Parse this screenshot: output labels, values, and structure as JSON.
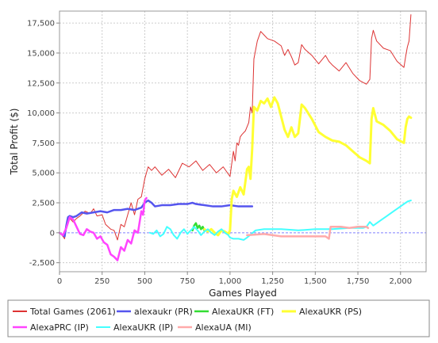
{
  "chart_data": {
    "type": "line",
    "title": "",
    "xlabel": "Games Played",
    "ylabel": "Total Profit ($)",
    "xlim": [
      0,
      2150
    ],
    "ylim": [
      -3250,
      18500
    ],
    "x_ticks": [
      0,
      250,
      500,
      750,
      1000,
      1250,
      1500,
      1750,
      2000
    ],
    "x_tick_labels": [
      "0",
      "250",
      "500",
      "750",
      "1,000",
      "1,250",
      "1,500",
      "1,750",
      "2,000"
    ],
    "y_ticks": [
      -2500,
      0,
      2500,
      5000,
      7500,
      10000,
      12500,
      15000,
      17500
    ],
    "y_tick_labels": [
      "-2,500",
      "0",
      "2,500",
      "5,000",
      "7,500",
      "10,000",
      "12,500",
      "15,000",
      "17,500"
    ],
    "grid": true,
    "legend_position": "bottom",
    "background": "#ffffff",
    "grid_color": "#cccccc",
    "zero_line_color": "#8080ff",
    "series": [
      {
        "name": "Total Games (2061)",
        "color": "#dd3333",
        "width": 1,
        "x": [
          0,
          20,
          30,
          40,
          50,
          60,
          80,
          100,
          120,
          150,
          180,
          200,
          220,
          250,
          270,
          300,
          320,
          340,
          360,
          380,
          400,
          420,
          440,
          460,
          480,
          500,
          520,
          540,
          560,
          600,
          640,
          680,
          720,
          760,
          800,
          840,
          880,
          920,
          960,
          1000,
          1020,
          1030,
          1040,
          1050,
          1060,
          1070,
          1090,
          1110,
          1120,
          1130,
          1140,
          1160,
          1180,
          1200,
          1220,
          1260,
          1300,
          1320,
          1340,
          1360,
          1380,
          1400,
          1420,
          1440,
          1480,
          1520,
          1560,
          1580,
          1600,
          1640,
          1680,
          1720,
          1760,
          1800,
          1820,
          1830,
          1840,
          1860,
          1900,
          1940,
          1980,
          2020,
          2030,
          2040,
          2050,
          2061
        ],
        "values": [
          0,
          -300,
          -500,
          800,
          1300,
          1200,
          900,
          1200,
          1400,
          1800,
          1600,
          2000,
          1400,
          1500,
          700,
          300,
          200,
          -600,
          700,
          500,
          1500,
          2500,
          1500,
          2800,
          3000,
          4500,
          5500,
          5200,
          5500,
          4800,
          5300,
          4600,
          5800,
          5500,
          6000,
          5200,
          5700,
          5000,
          5500,
          4700,
          6800,
          6000,
          7500,
          7300,
          8000,
          8200,
          8500,
          9200,
          10500,
          10000,
          14500,
          16000,
          16800,
          16500,
          16200,
          16000,
          15600,
          14800,
          15300,
          14700,
          14000,
          14200,
          15700,
          15300,
          14800,
          14100,
          14800,
          14300,
          14000,
          13500,
          14200,
          13300,
          12700,
          12400,
          12800,
          16200,
          16900,
          16000,
          15400,
          15200,
          14300,
          13800,
          14700,
          15500,
          16000,
          18200
        ]
      },
      {
        "name": "alexaukr (PR)",
        "color": "#5555ee",
        "width": 2.5,
        "x": [
          0,
          20,
          30,
          40,
          50,
          60,
          80,
          100,
          130,
          160,
          200,
          240,
          280,
          320,
          360,
          400,
          440,
          480,
          500,
          520,
          540,
          560,
          600,
          650,
          700,
          750,
          780,
          800,
          850,
          900,
          950,
          1000,
          1050,
          1100,
          1130
        ],
        "values": [
          0,
          -200,
          -300,
          600,
          1300,
          1400,
          1300,
          1400,
          1700,
          1600,
          1700,
          1800,
          1700,
          1900,
          1900,
          2000,
          1900,
          2100,
          2500,
          2700,
          2500,
          2200,
          2300,
          2300,
          2400,
          2400,
          2500,
          2400,
          2300,
          2200,
          2200,
          2300,
          2200,
          2200,
          2200
        ]
      },
      {
        "name": "AlexaUKR (FT)",
        "color": "#33dd33",
        "width": 2.5,
        "x": [
          780,
          790,
          800,
          810,
          820,
          830,
          840,
          850
        ],
        "values": [
          200,
          600,
          800,
          400,
          600,
          300,
          500,
          200
        ]
      },
      {
        "name": "AlexaUKR (PS)",
        "color": "#ffff33",
        "width": 3,
        "x": [
          850,
          870,
          890,
          910,
          930,
          950,
          970,
          990,
          1000,
          1010,
          1020,
          1040,
          1060,
          1080,
          1100,
          1110,
          1120,
          1130,
          1140,
          1160,
          1180,
          1200,
          1220,
          1240,
          1260,
          1280,
          1300,
          1320,
          1340,
          1360,
          1380,
          1400,
          1420,
          1440,
          1480,
          1520,
          1560,
          1600,
          1640,
          1680,
          1720,
          1760,
          1800,
          1820,
          1830,
          1840,
          1860,
          1900,
          1940,
          1980,
          2020,
          2030,
          2040,
          2050,
          2061
        ],
        "values": [
          300,
          100,
          300,
          0,
          -200,
          200,
          100,
          -100,
          200,
          2800,
          3500,
          3000,
          3800,
          3200,
          5300,
          5500,
          4500,
          7000,
          10500,
          10200,
          11000,
          10800,
          11200,
          10500,
          11300,
          10800,
          9700,
          8600,
          8000,
          8800,
          8000,
          8300,
          10700,
          10400,
          9500,
          8400,
          8000,
          7700,
          7600,
          7300,
          6800,
          6300,
          6000,
          5800,
          9500,
          10400,
          9300,
          9000,
          8500,
          7800,
          7500,
          8800,
          9500,
          9700,
          9600
        ]
      },
      {
        "name": "AlexaPRC (IP)",
        "color": "#ff44ff",
        "width": 2.5,
        "x": [
          0,
          20,
          40,
          60,
          80,
          100,
          120,
          140,
          160,
          180,
          200,
          220,
          240,
          260,
          280,
          300,
          320,
          340,
          360,
          380,
          400,
          420,
          440,
          460,
          480,
          490,
          500,
          510
        ],
        "values": [
          0,
          -200,
          400,
          1300,
          1100,
          500,
          -100,
          -200,
          300,
          100,
          0,
          -500,
          -300,
          -800,
          -1000,
          -1800,
          -2000,
          -2300,
          -1200,
          -1500,
          -600,
          -900,
          200,
          0,
          1800,
          1500,
          2700,
          2900
        ]
      },
      {
        "name": "AlexaUKR (IP)",
        "color": "#44ffff",
        "width": 2,
        "x": [
          530,
          550,
          570,
          590,
          610,
          630,
          650,
          670,
          690,
          710,
          730,
          750,
          770,
          790,
          810,
          830,
          850,
          870,
          890,
          910,
          930,
          950,
          970,
          990,
          1000,
          1020,
          1050,
          1080,
          1100,
          1150,
          1200,
          1300,
          1400,
          1500,
          1600,
          1700,
          1780,
          1800,
          1820,
          1840,
          1880,
          1920,
          1960,
          2000,
          2040,
          2061
        ],
        "values": [
          0,
          -100,
          200,
          -300,
          -100,
          500,
          300,
          -200,
          -500,
          0,
          300,
          -100,
          200,
          500,
          200,
          -200,
          100,
          300,
          0,
          -200,
          100,
          300,
          0,
          -200,
          -400,
          -500,
          -500,
          -600,
          -400,
          200,
          300,
          300,
          200,
          300,
          300,
          400,
          400,
          500,
          900,
          600,
          1000,
          1400,
          1800,
          2200,
          2600,
          2700
        ]
      },
      {
        "name": "AlexaUA (MI)",
        "color": "#ffaaaa",
        "width": 2.5,
        "x": [
          1100,
          1200,
          1300,
          1400,
          1500,
          1560,
          1580,
          1590,
          1650,
          1700,
          1750,
          1800,
          1810
        ],
        "values": [
          -200,
          -100,
          -300,
          -300,
          -300,
          -300,
          -500,
          500,
          500,
          400,
          500,
          500,
          400
        ]
      }
    ]
  }
}
